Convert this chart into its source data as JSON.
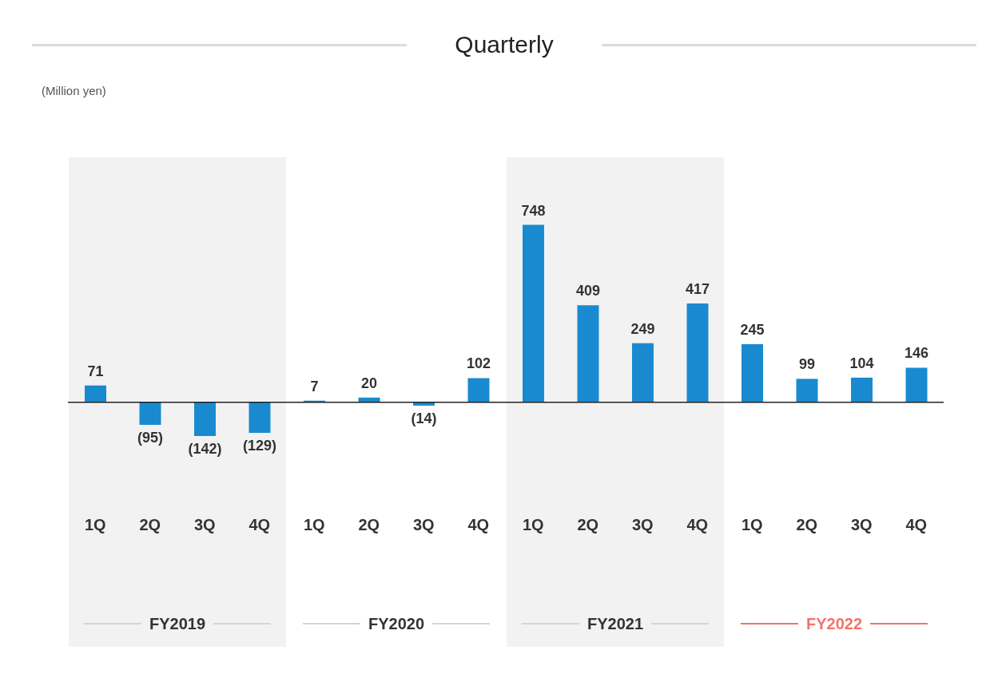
{
  "chart_data": {
    "type": "bar",
    "title": "Quarterly",
    "annotations": [
      "(Million yen)",
      "FY2019",
      "FY2020",
      "FY2021",
      "FY2022"
    ],
    "categories": [
      "1Q",
      "2Q",
      "3Q",
      "4Q",
      "1Q",
      "2Q",
      "3Q",
      "4Q",
      "1Q",
      "2Q",
      "3Q",
      "4Q",
      "1Q",
      "2Q",
      "3Q",
      "4Q"
    ],
    "values": [
      71,
      -95,
      -142,
      -129,
      7,
      20,
      -14,
      102,
      748,
      409,
      249,
      417,
      245,
      99,
      104,
      146
    ],
    "value_labels": [
      "71",
      "(95)",
      "(142)",
      "(129)",
      "7",
      "20",
      "(14)",
      "102",
      "748",
      "409",
      "249",
      "417",
      "245",
      "99",
      "104",
      "146"
    ],
    "color": "#1a8ad0"
  }
}
